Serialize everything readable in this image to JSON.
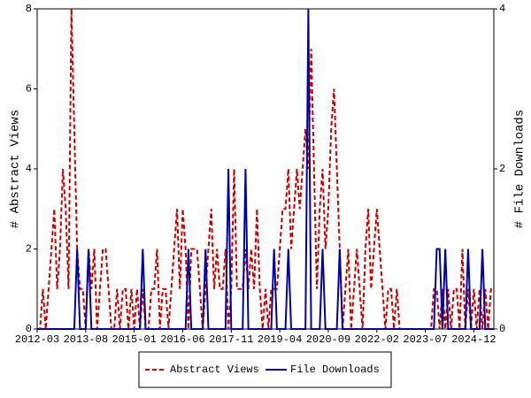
{
  "chart_data": {
    "type": "line",
    "ylabel": "# Abstract Views",
    "y2label": "# File Downloads",
    "x": [
      "2012-03",
      "2012-04",
      "2012-05",
      "2012-06",
      "2012-07",
      "2012-08",
      "2012-09",
      "2012-10",
      "2012-11",
      "2012-12",
      "2013-01",
      "2013-02",
      "2013-03",
      "2013-04",
      "2013-05",
      "2013-06",
      "2013-07",
      "2013-08",
      "2013-09",
      "2013-10",
      "2013-11",
      "2013-12",
      "2014-01",
      "2014-02",
      "2014-03",
      "2014-04",
      "2014-05",
      "2014-06",
      "2014-07",
      "2014-08",
      "2014-09",
      "2014-10",
      "2014-11",
      "2014-12",
      "2015-01",
      "2015-02",
      "2015-03",
      "2015-04",
      "2015-05",
      "2015-06",
      "2015-07",
      "2015-08",
      "2015-09",
      "2015-10",
      "2015-11",
      "2015-12",
      "2016-01",
      "2016-02",
      "2016-03",
      "2016-04",
      "2016-05",
      "2016-06",
      "2016-07",
      "2016-08",
      "2016-09",
      "2016-10",
      "2016-11",
      "2016-12",
      "2017-01",
      "2017-02",
      "2017-03",
      "2017-04",
      "2017-05",
      "2017-06",
      "2017-07",
      "2017-08",
      "2017-09",
      "2017-10",
      "2017-11",
      "2017-12",
      "2018-01",
      "2018-02",
      "2018-03",
      "2018-04",
      "2018-05",
      "2018-06",
      "2018-07",
      "2018-08",
      "2018-09",
      "2018-10",
      "2018-11",
      "2018-12",
      "2019-01",
      "2019-02",
      "2019-03",
      "2019-04",
      "2019-05",
      "2019-06",
      "2019-07",
      "2019-08",
      "2019-09",
      "2019-10",
      "2019-11",
      "2019-12",
      "2020-01",
      "2020-02",
      "2020-03",
      "2020-04",
      "2020-05",
      "2020-06",
      "2020-07",
      "2020-08",
      "2020-09",
      "2020-10",
      "2020-11",
      "2020-12",
      "2021-01",
      "2021-02",
      "2021-03",
      "2021-04",
      "2021-05",
      "2021-06",
      "2021-07",
      "2021-08",
      "2021-09",
      "2021-10",
      "2021-11",
      "2021-12",
      "2022-01",
      "2022-02",
      "2022-03",
      "2022-04",
      "2022-05",
      "2022-06",
      "2022-07",
      "2022-08",
      "2022-09",
      "2022-10",
      "2022-11",
      "2022-12",
      "2023-01",
      "2023-02",
      "2023-03",
      "2023-04",
      "2023-05",
      "2023-06",
      "2023-07",
      "2023-08",
      "2023-09",
      "2023-10",
      "2023-11",
      "2023-12",
      "2024-01",
      "2024-02",
      "2024-03",
      "2024-04",
      "2024-05",
      "2024-06",
      "2024-07",
      "2024-08",
      "2024-09",
      "2024-10",
      "2024-11",
      "2024-12",
      "2025-01",
      "2025-02",
      "2025-03",
      "2025-04",
      "2025-05",
      "2025-06",
      "2025-07"
    ],
    "xticks": [
      "2012-03",
      "2013-08",
      "2015-01",
      "2016-06",
      "2017-11",
      "2019-04",
      "2020-09",
      "2022-02",
      "2023-07",
      "2024-12"
    ],
    "ylim": [
      0,
      8
    ],
    "yticks": [
      0,
      2,
      4,
      6,
      8
    ],
    "y2lim": [
      0,
      4
    ],
    "y2ticks": [
      0,
      2,
      4
    ],
    "series": [
      {
        "name": "Abstract Views",
        "color": "#cc0000",
        "style": "dashed",
        "values": [
          0,
          0,
          1,
          0,
          1,
          2,
          3,
          1,
          2,
          4,
          3,
          1,
          8,
          5,
          2,
          1,
          1,
          0,
          2,
          1,
          2,
          0,
          1,
          2,
          2,
          1,
          0,
          0,
          1,
          0,
          1,
          1,
          0,
          1,
          0,
          1,
          0,
          1,
          0,
          0,
          1,
          1,
          2,
          0,
          1,
          1,
          0,
          1,
          2,
          3,
          1,
          3,
          2,
          0,
          2,
          2,
          2,
          1,
          0,
          1,
          2,
          3,
          1,
          2,
          1,
          1,
          2,
          0,
          1,
          4,
          1,
          1,
          1,
          2,
          1,
          2,
          1,
          3,
          1,
          0,
          1,
          0,
          1,
          1,
          1,
          2,
          3,
          3,
          4,
          2,
          3,
          4,
          3,
          4,
          5,
          4,
          7,
          4,
          1,
          3,
          4,
          2,
          3,
          5,
          6,
          4,
          2,
          0,
          1,
          2,
          0,
          1,
          2,
          1,
          0,
          2,
          3,
          1,
          2,
          3,
          2,
          1,
          0,
          1,
          1,
          0,
          1,
          0,
          0,
          0,
          0,
          0,
          0,
          0,
          0,
          0,
          0,
          0,
          0,
          1,
          1,
          0,
          1,
          0,
          1,
          0,
          1,
          1,
          0,
          2,
          0,
          1,
          0,
          1,
          0,
          1,
          0,
          1,
          0,
          1,
          1
        ]
      },
      {
        "name": "File Downloads",
        "color": "#0000aa",
        "style": "solid",
        "axis": "y2",
        "values": [
          0,
          0,
          0,
          0,
          0,
          0,
          0,
          0,
          0,
          0,
          0,
          0,
          0,
          0,
          1,
          0,
          0,
          0,
          1,
          0,
          0,
          0,
          0,
          0,
          0,
          0,
          0,
          0,
          0,
          0,
          0,
          0,
          0,
          0,
          0,
          0,
          0,
          1,
          0,
          0,
          0,
          0,
          0,
          0,
          0,
          0,
          0,
          0,
          0,
          0,
          0,
          0,
          0,
          1,
          0,
          0,
          0,
          0,
          0,
          1,
          0,
          0,
          0,
          0,
          0,
          0,
          0,
          2,
          0,
          0,
          0,
          0,
          0,
          2,
          0,
          0,
          0,
          0,
          0,
          0,
          0,
          0,
          0,
          1,
          0,
          0,
          0,
          0,
          1,
          0,
          0,
          0,
          0,
          0,
          0,
          4,
          0,
          0,
          0,
          0,
          1,
          0,
          0,
          0,
          0,
          0,
          1,
          0,
          0,
          0,
          0,
          0,
          0,
          0,
          0,
          0,
          0,
          0,
          0,
          0,
          0,
          0,
          0,
          0,
          0,
          0,
          0,
          0,
          0,
          0,
          0,
          0,
          0,
          0,
          0,
          0,
          0,
          0,
          0,
          0,
          1,
          1,
          0,
          1,
          0,
          0,
          0,
          0,
          0,
          0,
          0,
          1,
          0,
          0,
          0,
          0,
          1,
          0,
          0,
          0,
          0
        ]
      }
    ],
    "legend": "bottom"
  }
}
